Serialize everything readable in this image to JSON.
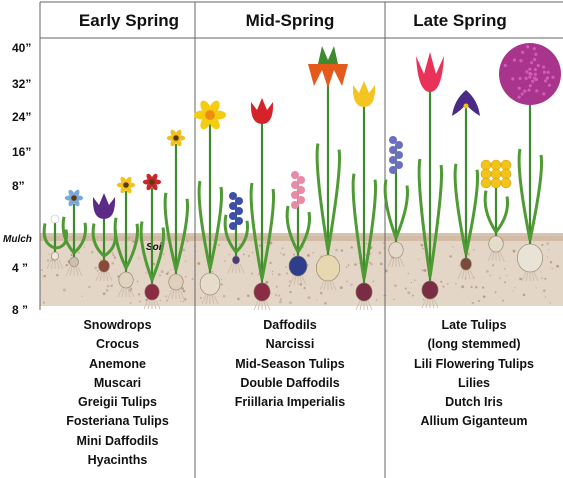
{
  "headers": {
    "early": "Early Spring",
    "mid": "Mid-Spring",
    "late": "Late Spring"
  },
  "y_ticks": [
    {
      "label": "40”",
      "value": 40
    },
    {
      "label": "32”",
      "value": 32
    },
    {
      "label": "24”",
      "value": 24
    },
    {
      "label": "16”",
      "value": 16
    },
    {
      "label": "8”",
      "value": 8
    },
    {
      "label": "4 ”",
      "value": -4
    },
    {
      "label": "8 ”",
      "value": -8
    }
  ],
  "ground_labels": {
    "mulch": "Mulch",
    "soil": "Soil"
  },
  "lists": {
    "early": [
      "Snowdrops",
      "Crocus",
      "Anemone",
      "Muscari",
      "Greigii Tulips",
      "Fosteriana Tulips",
      "Mini Daffodils",
      "Hyacinths"
    ],
    "mid": [
      "Daffodils",
      "Narcissi",
      "Mid-Season Tulips",
      "Double Daffodils",
      "Friillaria Imperialis"
    ],
    "late": [
      "Late Tulips",
      "(long stemmed)",
      "Lili Flowering Tulips",
      "Lilies",
      "Dutch Iris",
      "Allium Giganteum"
    ]
  },
  "colors": {
    "stem": "#3f8a2e",
    "leaf": "#4f9a35",
    "soil": "#d9c7b4",
    "grid": "#555555",
    "bulb": "#e8dcc8"
  }
}
